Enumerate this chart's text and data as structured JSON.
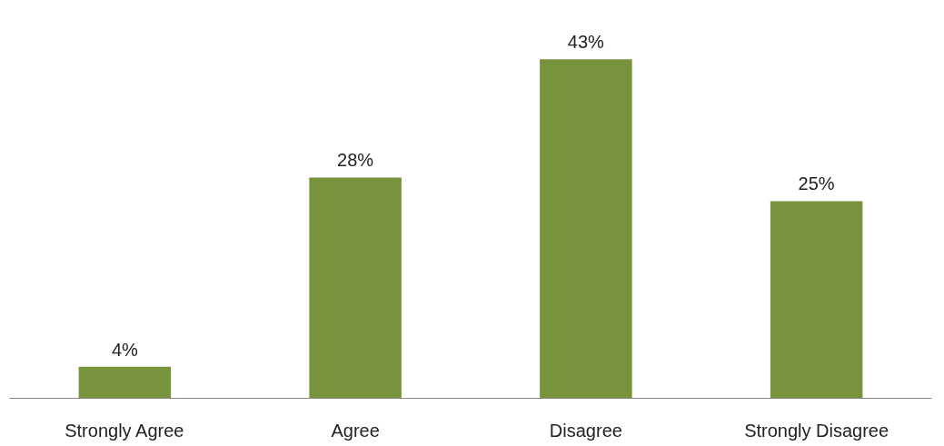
{
  "chart_data": {
    "type": "bar",
    "categories": [
      "Strongly Agree",
      "Agree",
      "Disagree",
      "Strongly Disagree"
    ],
    "values": [
      4,
      28,
      43,
      25
    ],
    "value_labels": [
      "4%",
      "28%",
      "43%",
      "25%"
    ],
    "color": "#77933c",
    "grid": false,
    "tick_labels": "x"
  }
}
